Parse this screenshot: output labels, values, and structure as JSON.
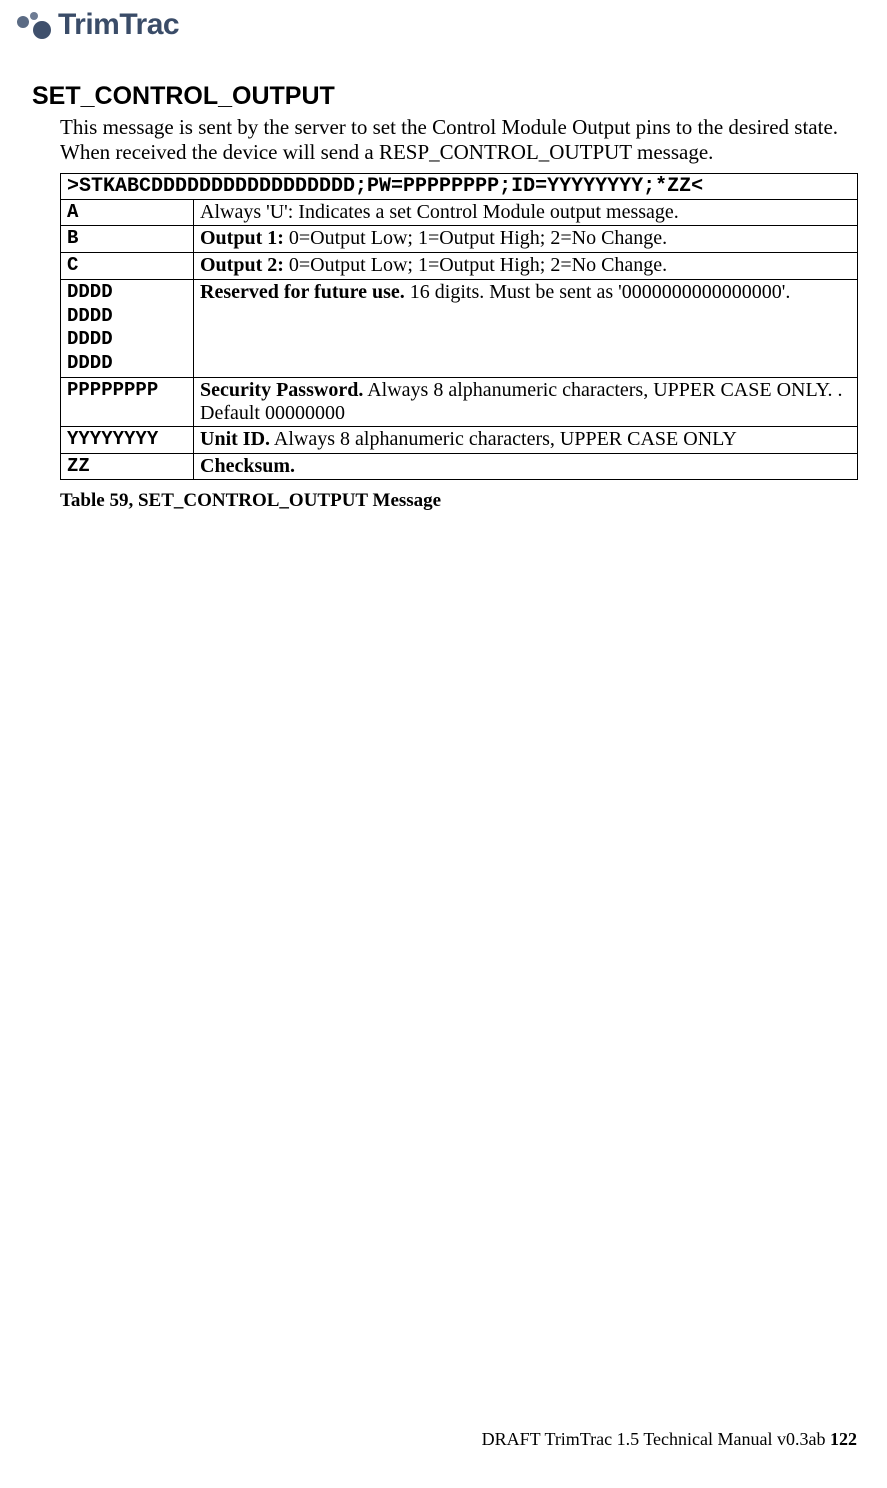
{
  "header": {
    "logo_text": "TrimTrac"
  },
  "section": {
    "title": "SET_CONTROL_OUTPUT",
    "intro": "This message is sent by the server to set the Control Module Output pins to the desired state.  When received the device will send a RESP_CONTROL_OUTPUT message."
  },
  "table": {
    "syntax": ">STKABCDDDDDDDDDDDDDDDDD;PW=PPPPPPPP;ID=YYYYYYYY;*ZZ<",
    "rows": [
      {
        "code": "A",
        "desc_plain": "Always 'U': Indicates a set Control Module output message."
      },
      {
        "code": "B",
        "desc_bold": "Output 1:",
        "desc_rest": " 0=Output Low; 1=Output High; 2=No Change."
      },
      {
        "code": "C",
        "desc_bold": "Output 2:",
        "desc_rest": " 0=Output Low; 1=Output High; 2=No Change."
      },
      {
        "code": "DDDD DDDD DDDD DDDD",
        "desc_bold": "Reserved for future use.",
        "desc_rest": "  16 digits.  Must be sent as '0000000000000000'."
      },
      {
        "code": "PPPPPPPP",
        "desc_bold": "Security Password.",
        "desc_rest": "  Always 8 alphanumeric characters, UPPER CASE ONLY.  . Default 00000000"
      },
      {
        "code": "YYYYYYYY",
        "desc_bold": "Unit ID.",
        "desc_rest": " Always 8 alphanumeric characters, UPPER CASE ONLY"
      },
      {
        "code": "ZZ",
        "desc_bold": "Checksum."
      }
    ],
    "caption": "Table 59, SET_CONTROL_OUTPUT Message"
  },
  "footer": {
    "text": "DRAFT TrimTrac 1.5 Technical Manual v0.3ab ",
    "page": "122"
  }
}
